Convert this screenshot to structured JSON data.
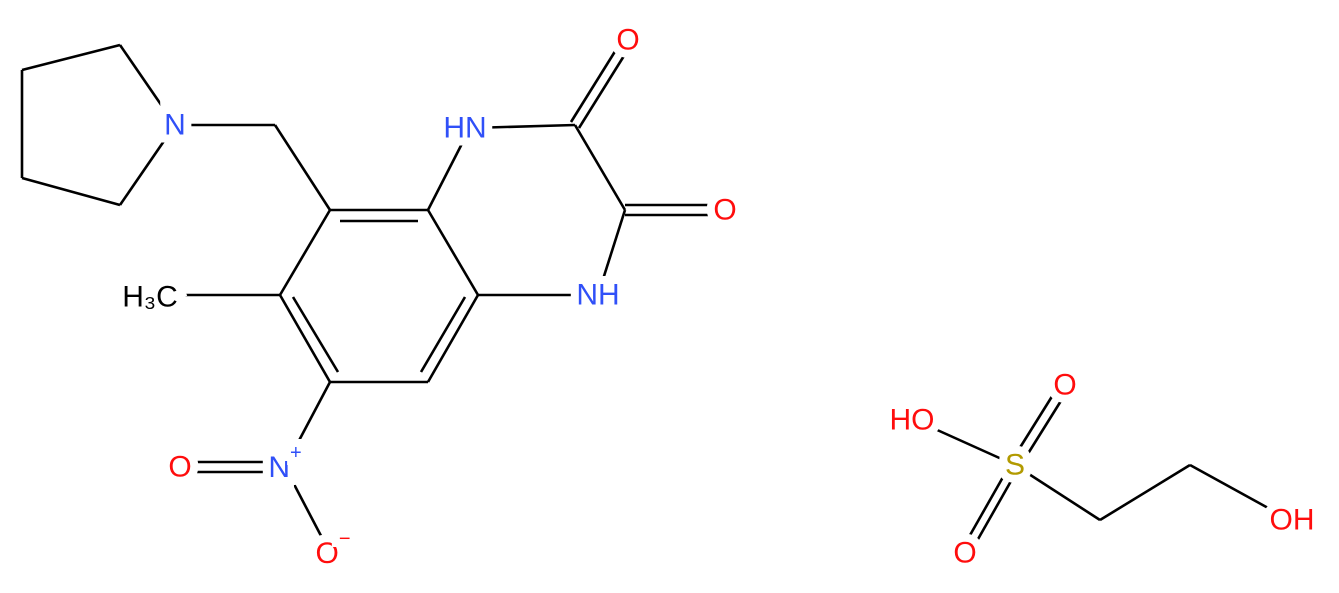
{
  "molecules": [
    {
      "atoms": [
        {
          "label": "N"
        },
        {
          "label": "HN"
        },
        {
          "label": "O"
        },
        {
          "label": "O"
        },
        {
          "label": "NH"
        },
        {
          "label": "H₃C"
        },
        {
          "label": "N",
          "charge": "+"
        },
        {
          "label": "O"
        },
        {
          "label": "O",
          "charge": "−"
        }
      ]
    },
    {
      "atoms": [
        {
          "label": "HO"
        },
        {
          "label": "S"
        },
        {
          "label": "O"
        },
        {
          "label": "O"
        },
        {
          "label": "OH"
        }
      ]
    }
  ]
}
